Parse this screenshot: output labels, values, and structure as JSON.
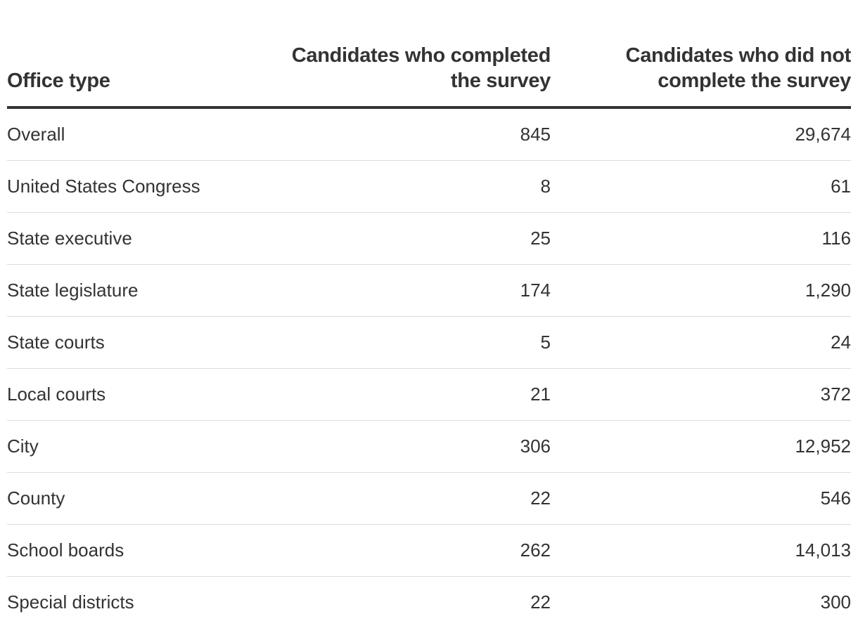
{
  "table": {
    "headers": [
      "Office type",
      "Candidates who completed the survey",
      "Candidates who did not complete the survey"
    ],
    "rows": [
      [
        "Overall",
        "845",
        "29,674"
      ],
      [
        "United States Congress",
        "8",
        "61"
      ],
      [
        "State executive",
        "25",
        "116"
      ],
      [
        "State legislature",
        "174",
        "1,290"
      ],
      [
        "State courts",
        "5",
        "24"
      ],
      [
        "Local courts",
        "21",
        "372"
      ],
      [
        "City",
        "306",
        "12,952"
      ],
      [
        "County",
        "22",
        "546"
      ],
      [
        "School boards",
        "262",
        "14,013"
      ],
      [
        "Special districts",
        "22",
        "300"
      ]
    ]
  },
  "colors": {
    "text": "#333333",
    "header_rule": "#333333",
    "row_rule": "#dddddd",
    "background": "#ffffff"
  }
}
